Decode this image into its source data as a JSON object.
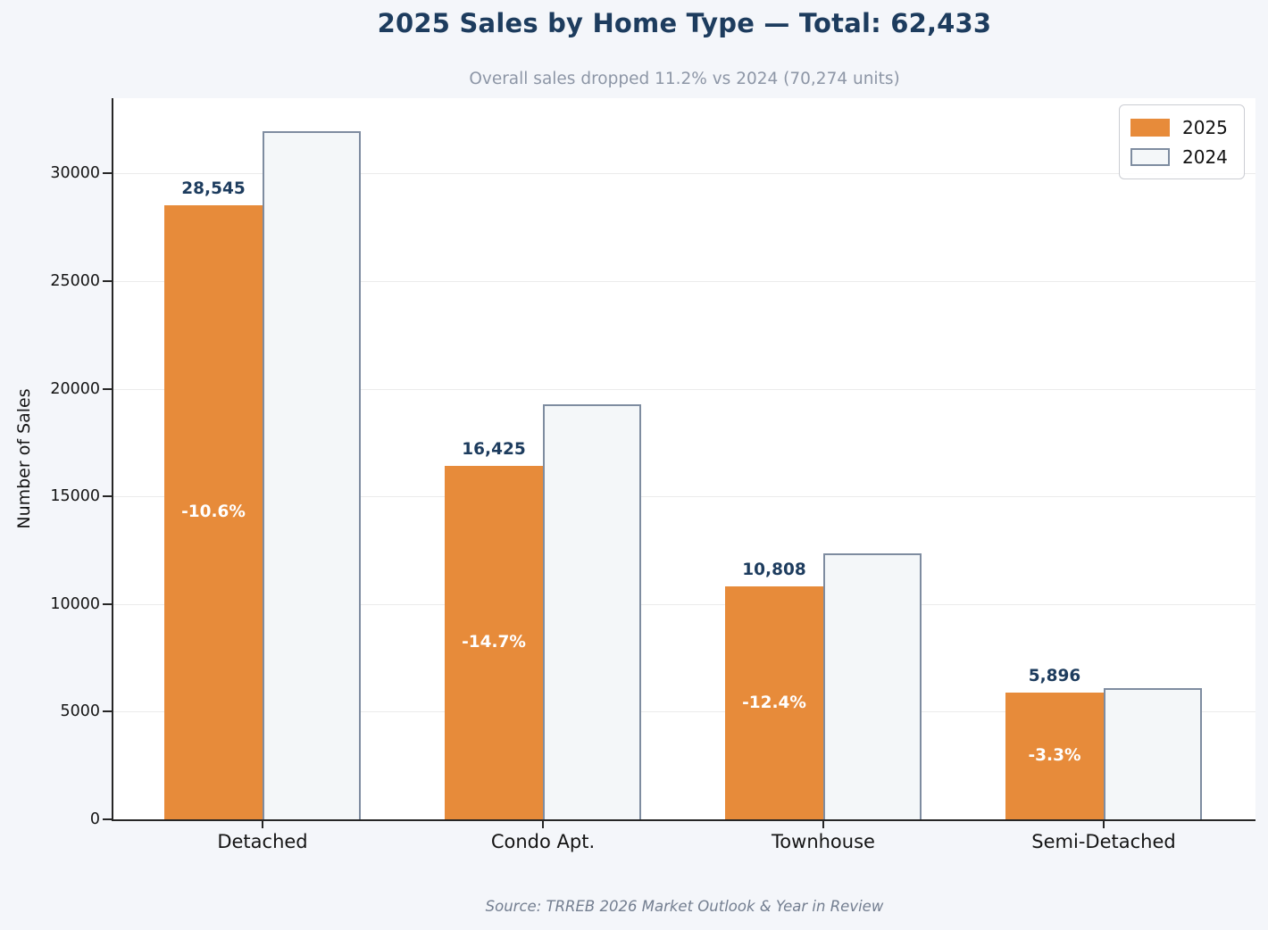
{
  "page": {
    "title": "2025 Sales by Home Type — Total: 62,433",
    "subtitle": "Overall sales dropped 11.2% vs 2024 (70,274 units)",
    "source": "Source: TRREB 2026 Market Outlook & Year in Review"
  },
  "colors": {
    "background": "#f4f6fa",
    "plot_background": "#ffffff",
    "title_navy": "#1d3c5e",
    "subtitle_gray": "#8d96a6",
    "bar_2025_orange": "#e78b3a",
    "bar_2024_fill": "#f4f7f9",
    "bar_2024_border": "#7e8ca0",
    "gridline": "#ebebeb",
    "spine": "#262626",
    "source_gray": "#737e90"
  },
  "chart_data": {
    "type": "bar",
    "title": "2025 Sales by Home Type — Total: 62,433",
    "subtitle": "Overall sales dropped 11.2% vs 2024 (70,274 units)",
    "categories": [
      "Detached",
      "Condo Apt.",
      "Townhouse",
      "Semi-Detached"
    ],
    "series": [
      {
        "name": "2025",
        "values": [
          28545,
          16425,
          10808,
          5896
        ],
        "value_labels": [
          "28,545",
          "16,425",
          "10,808",
          "5,896"
        ],
        "pct_change_labels": [
          "-10.6%",
          "-14.7%",
          "-12.4%",
          "-3.3%"
        ],
        "color": "#e78b3a",
        "style": "filled"
      },
      {
        "name": "2024",
        "values": [
          31950,
          19280,
          12350,
          6100
        ],
        "values_estimated_from_pixels": true,
        "fill": "#f4f7f9",
        "border": "#7e8ca0",
        "style": "outlined"
      }
    ],
    "xlabel": "",
    "ylabel": "Number of Sales",
    "yticks": [
      0,
      5000,
      10000,
      15000,
      20000,
      25000,
      30000
    ],
    "ytick_labels": [
      "0",
      "5000",
      "10000",
      "15000",
      "20000",
      "25000",
      "30000"
    ],
    "ylim": [
      0,
      33500
    ],
    "grid": "horizontal",
    "legend_position": "top-right",
    "legend_entries": [
      "2025",
      "2024"
    ]
  }
}
